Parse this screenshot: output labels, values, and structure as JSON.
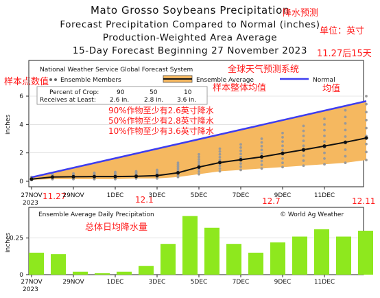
{
  "titles": {
    "line1": "Mato Grosso Soybeans Precipitation",
    "line2": "Forecast Precipitation Compared to Normal (inches)",
    "line3": "Production-Weighted Area Average",
    "line4": "15-Day Forecast Beginning 27 November 2023"
  },
  "annotations": {
    "title_cn": "降水预测",
    "unit_cn": "单位：英寸",
    "range_cn": "11.27后15天",
    "samples_cn": "样本点数值",
    "gfs_cn": "全球天气预测系统",
    "ensavg_cn": "样本整体均值",
    "normal_cn": "均值",
    "pct90_cn": "90%作物至少有2.6英寸降水",
    "pct50_cn": "50%作物至少有2.8英寸降水",
    "pct10_cn": "10%作物至少有3.6英寸降水",
    "d1127": "11.27",
    "d121": "12.1",
    "d127": "12.7",
    "d1211": "12.11",
    "avg_cn": "总体日均降水量"
  },
  "chart_data": [
    {
      "type": "line",
      "title": "National Weather Service Global Forecast System",
      "ylabel": "inches",
      "ylim": [
        0,
        6
      ],
      "yticks": [
        "0",
        "2",
        "4",
        "6"
      ],
      "x_ticks": [
        "27NOV",
        "29NOV",
        "1DEC",
        "3DEC",
        "5DEC",
        "7DEC",
        "9DEC",
        "11DEC"
      ],
      "x_year": "2023",
      "legend": {
        "members": "Ensemble Members",
        "average": "Ensemble Average",
        "normal": "Normal",
        "placement": "top"
      },
      "crop_table": {
        "row1_label": "Percent of Crop:",
        "row2_label": "Receives at Least:",
        "percents": [
          "90",
          "50",
          "10"
        ],
        "amounts": [
          "2.6 in.",
          "2.8 in.",
          "3.6 in."
        ]
      },
      "normal": {
        "start": 0.28,
        "end": 5.65
      },
      "ensemble_average": [
        0.15,
        0.3,
        0.32,
        0.33,
        0.33,
        0.35,
        0.4,
        0.6,
        1.0,
        1.32,
        1.52,
        1.72,
        1.97,
        2.22,
        2.48,
        2.75,
        3.05
      ],
      "member_range_low": [
        0.1,
        0.15,
        0.15,
        0.15,
        0.15,
        0.2,
        0.2,
        0.3,
        0.5,
        0.7,
        0.8,
        0.9,
        1.0,
        1.1,
        1.2,
        1.3,
        1.5
      ],
      "member_range_high": [
        0.3,
        0.5,
        0.55,
        0.6,
        0.65,
        0.7,
        0.8,
        1.3,
        1.9,
        2.3,
        2.6,
        3.0,
        3.4,
        3.9,
        4.4,
        5.0,
        6.0
      ]
    },
    {
      "type": "bar",
      "title": "Ensemble Average Daily Precipitation",
      "credit": "© World Ag Weather",
      "ylabel": "inches",
      "ylim": [
        0,
        0.45
      ],
      "yticks": [
        "0",
        "0.25"
      ],
      "x_ticks": [
        "27NOV",
        "29NOV",
        "1DEC",
        "3DEC",
        "5DEC",
        "7DEC",
        "9DEC",
        "11DEC"
      ],
      "x_year": "2023",
      "values": [
        0.15,
        0.14,
        0.02,
        0.01,
        0.02,
        0.06,
        0.21,
        0.4,
        0.32,
        0.21,
        0.15,
        0.22,
        0.26,
        0.31,
        0.26,
        0.3
      ]
    }
  ],
  "colors": {
    "band": "#f5b860",
    "normal": "#3d3df0",
    "avg": "#111111",
    "member": "#9a9a9a",
    "bar": "#8ee81e",
    "annotation": "#ff1a1a"
  }
}
